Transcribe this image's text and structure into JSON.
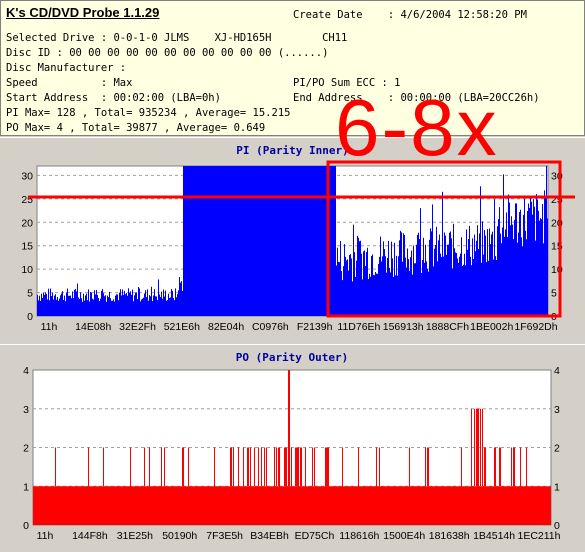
{
  "info": {
    "app_title": "K's CD/DVD Probe 1.1.29",
    "lines": [
      {
        "text": "Create Date    : 4/6/2004 12:58:20 PM",
        "x": 292,
        "y": 8
      },
      {
        "text": "Selected Drive : 0-0-1-0 JLMS    XJ-HD165H        CH11",
        "x": 5,
        "y": 31
      },
      {
        "text": "Disc ID : 00 00 00 00 00 00 00 00 00 00 00 (......)",
        "x": 5,
        "y": 46
      },
      {
        "text": "Disc Manufacturer :",
        "x": 5,
        "y": 61
      },
      {
        "text": "Speed          : Max",
        "x": 5,
        "y": 76
      },
      {
        "text": "PI/PO Sum ECC : 1",
        "x": 292,
        "y": 76
      },
      {
        "text": "Start Address  : 00:02:00 (LBA=0h)",
        "x": 5,
        "y": 91
      },
      {
        "text": "End Address    : 00:00:00 (LBA=20CC26h)",
        "x": 292,
        "y": 91
      },
      {
        "text": "PI Max= 128 , Total= 935234 , Average= 15.215",
        "x": 5,
        "y": 106
      },
      {
        "text": "PO Max= 4 , Total= 39877 , Average= 0.649",
        "x": 5,
        "y": 121
      }
    ]
  },
  "annotation": {
    "text": "6-8x",
    "color": "#ff0000"
  },
  "chart_data": [
    {
      "type": "bar",
      "title": "PI (Parity Inner)",
      "color": "#0000ff",
      "ylim": [
        0,
        32
      ],
      "yticks": [
        "0",
        "5",
        "10",
        "15",
        "20",
        "25",
        "30"
      ],
      "xticks": [
        "11h",
        "14E08h",
        "32E2Fh",
        "521E6h",
        "82E04h",
        "C0976h",
        "F2139h",
        "11D76Eh",
        "156913h",
        "1888CFh",
        "1BE002h",
        "1F692Dh"
      ],
      "segments": [
        {
          "from": 0.0,
          "to": 0.275,
          "level": 4.5,
          "noise": 1.5
        },
        {
          "from": 0.275,
          "to": 0.285,
          "level": 7,
          "noise": 2
        },
        {
          "from": 0.285,
          "to": 0.585,
          "level": 32,
          "noise": 0
        },
        {
          "from": 0.585,
          "to": 0.9,
          "level": 12,
          "noise": 5
        },
        {
          "from": 0.9,
          "to": 1.0,
          "level": 20,
          "noise": 6
        }
      ],
      "grid": true
    },
    {
      "type": "bar",
      "title": "PO (Parity Outer)",
      "color": "#ff0000",
      "ylim": [
        0,
        4
      ],
      "yticks": [
        "0",
        "1",
        "2",
        "3",
        "4"
      ],
      "xticks": [
        "11h",
        "144F8h",
        "31E25h",
        "50190h",
        "7F3E5h",
        "B34EBh",
        "ED75Ch",
        "118616h",
        "1500E4h",
        "181638h",
        "1B4514h",
        "1EC211h"
      ],
      "base_level": 1,
      "grid": true
    }
  ]
}
